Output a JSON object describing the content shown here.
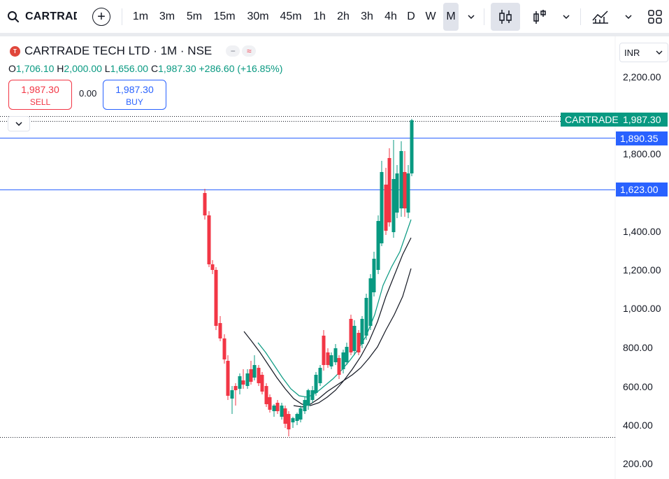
{
  "toolbar": {
    "symbol": "CARTRADE",
    "intervals": [
      "1m",
      "3m",
      "5m",
      "15m",
      "30m",
      "45m",
      "1h",
      "2h",
      "3h",
      "4h",
      "D",
      "W",
      "M"
    ],
    "active_interval": "M"
  },
  "legend": {
    "title": "CARTRADE TECH LTD · 1M · NSE",
    "logo_letter": "T",
    "pill_a": "−",
    "pill_b": "≈",
    "open_label": "O",
    "open": "1,706.10",
    "high_label": "H",
    "high": "2,000.00",
    "low_label": "L",
    "low": "1,656.00",
    "close_label": "C",
    "close": "1,987.30",
    "change": "+286.60 (+16.85%)"
  },
  "trade": {
    "sell_price": "1,987.30",
    "sell_label": "SELL",
    "spread": "0.00",
    "buy_price": "1,987.30",
    "buy_label": "BUY"
  },
  "currency": "INR",
  "price_axis": [
    "2,200.00",
    "1,800.00",
    "1,400.00",
    "1,200.00",
    "1,000.00",
    "800.00",
    "600.00",
    "400.00",
    "200.00"
  ],
  "price_tags": {
    "symbol_tag": "CARTRADE",
    "last_price": "1,987.30",
    "line1": "1,890.35",
    "line2": "1,623.00"
  },
  "colors": {
    "up": "#089981",
    "down": "#f23645",
    "line_blue": "#2962ff",
    "accent": "#2962ff"
  }
}
